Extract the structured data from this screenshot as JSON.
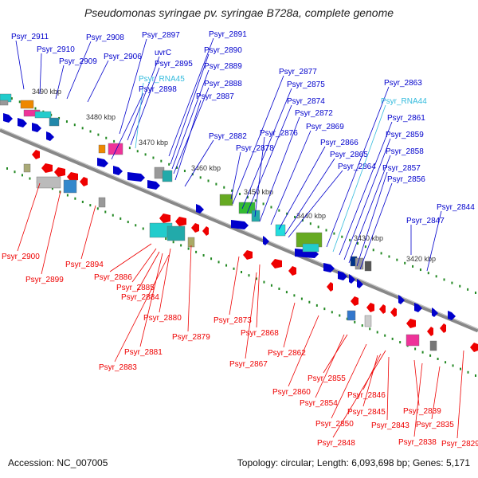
{
  "title": "Pseudomonas syringae pv. syringae B728a, complete genome",
  "footer": {
    "accession": "Accession: NC_007005",
    "topology": "Topology: circular; Length: 6,093,698 bp; Genes: 5,171"
  },
  "colors": {
    "forward": "#0000cc",
    "reverse": "#ee0000",
    "rna": "#33bbdd",
    "backbone": "#888888",
    "tick": "#228822"
  },
  "kbp_labels": [
    "3490 kbp",
    "3480 kbp",
    "3470 kbp",
    "3460 kbp",
    "3450 kbp",
    "3440 kbp",
    "3430 kbp",
    "3420 kbp"
  ],
  "top_labels": [
    "Psyr_2911",
    "Psyr_2910",
    "Psyr_2909",
    "Psyr_2908",
    "Psyr_2906",
    "Psyr_2897",
    "uvrC",
    "Psyr_2895",
    "Psyr_RNA45",
    "Psyr_2898",
    "Psyr_2891",
    "Psyr_2890",
    "Psyr_2889",
    "Psyr_2888",
    "Psyr_2887",
    "Psyr_2882",
    "Psyr_2878",
    "Psyr_2877",
    "Psyr_2875",
    "Psyr_2874",
    "Psyr_2876",
    "Psyr_2872",
    "Psyr_2869",
    "Psyr_2866",
    "Psyr_2865",
    "Psyr_2864",
    "Psyr_2863",
    "Psyr_RNA44",
    "Psyr_2861",
    "Psyr_2859",
    "Psyr_2858",
    "Psyr_2857",
    "Psyr_2856",
    "Psyr_2847",
    "Psyr_2844"
  ],
  "bottom_labels": [
    "Psyr_2900",
    "Psyr_2899",
    "Psyr_2894",
    "Psyr_2886",
    "Psyr_2885",
    "Psyr_2884",
    "Psyr_2880",
    "Psyr_2879",
    "Psyr_2881",
    "Psyr_2883",
    "Psyr_2873",
    "Psyr_2868",
    "Psyr_2867",
    "Psyr_2862",
    "Psyr_2860",
    "Psyr_2855",
    "Psyr_2854",
    "Psyr_2850",
    "Psyr_2848",
    "Psyr_2846",
    "Psyr_2845",
    "Psyr_2843",
    "Psyr_2839",
    "Psyr_2838",
    "Psyr_2835",
    "Psyr_2829"
  ]
}
